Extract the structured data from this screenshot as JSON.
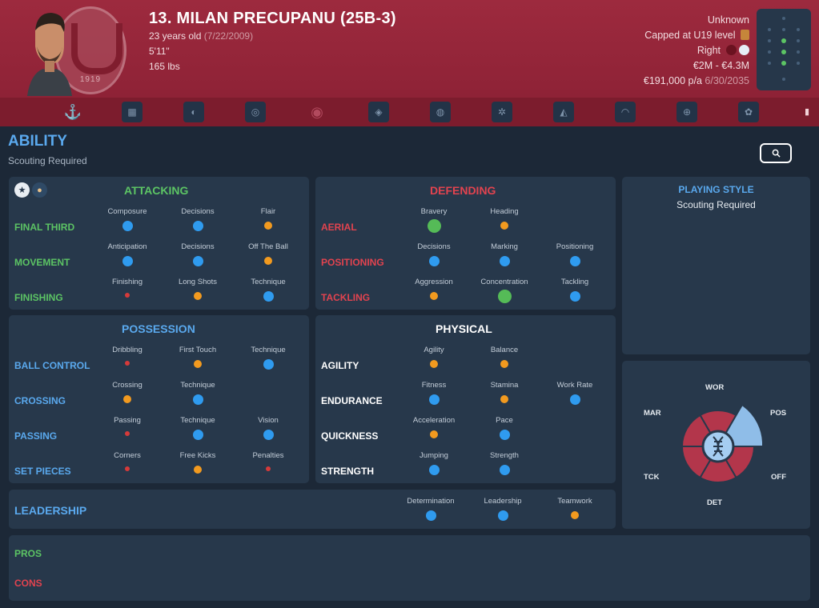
{
  "header": {
    "player_name": "13. MILAN PRECUPANU (25B-3)",
    "age": "23 years old",
    "dob": "(7/22/2009)",
    "height": "5'11\"",
    "weight": "165 lbs",
    "nationality": "Unknown",
    "caps": "Capped at U19 level",
    "foot": "Right",
    "value": "€2M - €4.3M",
    "wage": "€191,000 p/a",
    "contract_end": "6/30/2035",
    "crest_text": "1919",
    "crest_icon": "club-crest-icon",
    "brand_color": "#9d2a3e"
  },
  "tabs": [
    "anchor-icon",
    "squad-icon",
    "shirt-icon",
    "ball-icon",
    "crest-icon",
    "chart-icon",
    "helmet-icon",
    "gear-icon",
    "boot-icon",
    "trend-icon",
    "target-icon",
    "globe-icon"
  ],
  "ability": {
    "title": "ABILITY",
    "subtitle": "Scouting Required",
    "search_icon": "search-icon"
  },
  "attacking": {
    "title": "ATTACKING",
    "rows": [
      {
        "label": "FINAL THIRD",
        "attrs": [
          {
            "name": "Composure",
            "size": "l"
          },
          {
            "name": "Decisions",
            "size": "l"
          },
          {
            "name": "Flair",
            "size": "m"
          }
        ]
      },
      {
        "label": "MOVEMENT",
        "attrs": [
          {
            "name": "Anticipation",
            "size": "l"
          },
          {
            "name": "Decisions",
            "size": "l"
          },
          {
            "name": "Off The Ball",
            "size": "m"
          }
        ]
      },
      {
        "label": "FINISHING",
        "attrs": [
          {
            "name": "Finishing",
            "size": "s"
          },
          {
            "name": "Long Shots",
            "size": "m"
          },
          {
            "name": "Technique",
            "size": "l"
          }
        ]
      }
    ]
  },
  "defending": {
    "title": "DEFENDING",
    "rows": [
      {
        "label": "AERIAL",
        "attrs": [
          {
            "name": "Bravery",
            "size": "xl"
          },
          {
            "name": "Heading",
            "size": "m"
          }
        ]
      },
      {
        "label": "POSITIONING",
        "attrs": [
          {
            "name": "Decisions",
            "size": "l"
          },
          {
            "name": "Marking",
            "size": "l"
          },
          {
            "name": "Positioning",
            "size": "l"
          }
        ]
      },
      {
        "label": "TACKLING",
        "attrs": [
          {
            "name": "Aggression",
            "size": "m"
          },
          {
            "name": "Concentration",
            "size": "xl"
          },
          {
            "name": "Tackling",
            "size": "l"
          }
        ]
      }
    ]
  },
  "possession": {
    "title": "POSSESSION",
    "rows": [
      {
        "label": "BALL CONTROL",
        "attrs": [
          {
            "name": "Dribbling",
            "size": "s"
          },
          {
            "name": "First Touch",
            "size": "m"
          },
          {
            "name": "Technique",
            "size": "l"
          }
        ]
      },
      {
        "label": "CROSSING",
        "attrs": [
          {
            "name": "Crossing",
            "size": "m"
          },
          {
            "name": "Technique",
            "size": "l"
          }
        ]
      },
      {
        "label": "PASSING",
        "attrs": [
          {
            "name": "Passing",
            "size": "s"
          },
          {
            "name": "Technique",
            "size": "l"
          },
          {
            "name": "Vision",
            "size": "l"
          }
        ]
      },
      {
        "label": "SET PIECES",
        "attrs": [
          {
            "name": "Corners",
            "size": "s"
          },
          {
            "name": "Free Kicks",
            "size": "m"
          },
          {
            "name": "Penalties",
            "size": "s"
          }
        ]
      }
    ]
  },
  "physical": {
    "title": "PHYSICAL",
    "rows": [
      {
        "label": "AGILITY",
        "attrs": [
          {
            "name": "Agility",
            "size": "m"
          },
          {
            "name": "Balance",
            "size": "m"
          }
        ]
      },
      {
        "label": "ENDURANCE",
        "attrs": [
          {
            "name": "Fitness",
            "size": "l"
          },
          {
            "name": "Stamina",
            "size": "m"
          },
          {
            "name": "Work Rate",
            "size": "l"
          }
        ]
      },
      {
        "label": "QUICKNESS",
        "attrs": [
          {
            "name": "Acceleration",
            "size": "m"
          },
          {
            "name": "Pace",
            "size": "l"
          }
        ]
      },
      {
        "label": "STRENGTH",
        "attrs": [
          {
            "name": "Jumping",
            "size": "l"
          },
          {
            "name": "Strength",
            "size": "l"
          }
        ]
      }
    ]
  },
  "leadership": {
    "label": "LEADERSHIP",
    "attrs": [
      {
        "name": "Determination",
        "size": "l"
      },
      {
        "name": "Leadership",
        "size": "l"
      },
      {
        "name": "Teamwork",
        "size": "m"
      }
    ]
  },
  "playing_style": {
    "title": "PLAYING STYLE",
    "text": "Scouting Required"
  },
  "radar": {
    "labels": [
      "WOR",
      "POS",
      "OFF",
      "DET",
      "TCK",
      "MAR"
    ],
    "highlight": "POS",
    "center_icon": "dna-icon"
  },
  "pros_cons": {
    "pros_label": "PROS",
    "cons_label": "CONS"
  },
  "colors": {
    "attacking": "#5cc464",
    "defending": "#e2434f",
    "possession": "#5aa9ee",
    "dot_small": "#d63a3a",
    "dot_medium": "#f29a1f",
    "dot_large": "#2f9bef",
    "dot_xl": "#55bb57"
  }
}
